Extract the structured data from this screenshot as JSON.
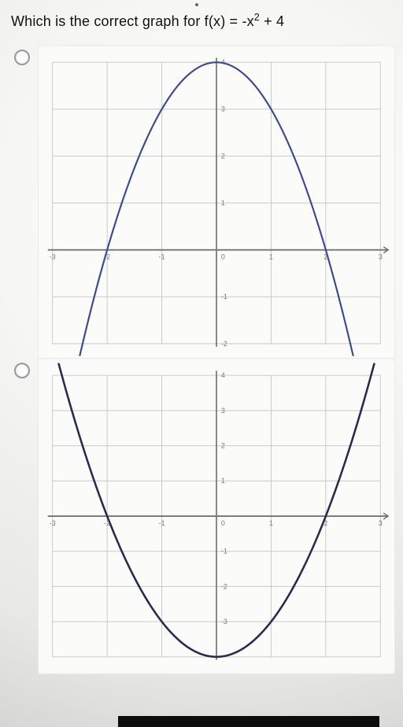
{
  "question": {
    "prefix": "Which is the correct graph for f(x) = ",
    "expr_base": "-x",
    "expr_sup": "2",
    "expr_tail": " + 4"
  },
  "options": [
    {
      "chart": {
        "type": "parabola",
        "direction": "down",
        "xlim": [
          -3,
          3
        ],
        "ylim": [
          -2,
          4
        ],
        "xtick_step": 1,
        "ytick_step": 1,
        "x_labels": [
          -3,
          -2,
          -1,
          0,
          1,
          2,
          3
        ],
        "y_labels": [
          -2,
          -1,
          0,
          1,
          2,
          3,
          4
        ],
        "vertex": [
          0,
          4
        ],
        "a": -1,
        "grid_major_color": "#c9c9c7",
        "grid_minor_color": "#e2e2e0",
        "y_axis_color": "#7a7a78",
        "x_axis_color": "#6a6a68",
        "axis_label_color": "#777777",
        "curve_color": "#3d4a8f",
        "curve_width": 2.2,
        "background_color": "#fbfbf9",
        "label_fontsize": 9,
        "x_extension": 0.3
      }
    },
    {
      "chart": {
        "type": "parabola",
        "direction": "up",
        "xlim": [
          -3,
          3
        ],
        "ylim": [
          -4,
          4
        ],
        "xtick_step": 1,
        "ytick_step": 1,
        "x_labels": [
          -3,
          -2,
          -1,
          0,
          1,
          2,
          3
        ],
        "y_labels": [
          -3,
          -2,
          -1,
          0,
          1,
          2,
          3,
          4
        ],
        "vertex": [
          0,
          -4
        ],
        "a": 1,
        "grid_major_color": "#c9c9c7",
        "grid_minor_color": "#e2e2e0",
        "y_axis_color": "#7a7a78",
        "x_axis_color": "#6a6a68",
        "axis_label_color": "#777777",
        "curve_color": "#262b4f",
        "curve_width": 2.6,
        "background_color": "#fbfbf9",
        "label_fontsize": 9,
        "x_extension": 0.3
      }
    }
  ],
  "svg_defaults": {
    "margin": 18
  }
}
